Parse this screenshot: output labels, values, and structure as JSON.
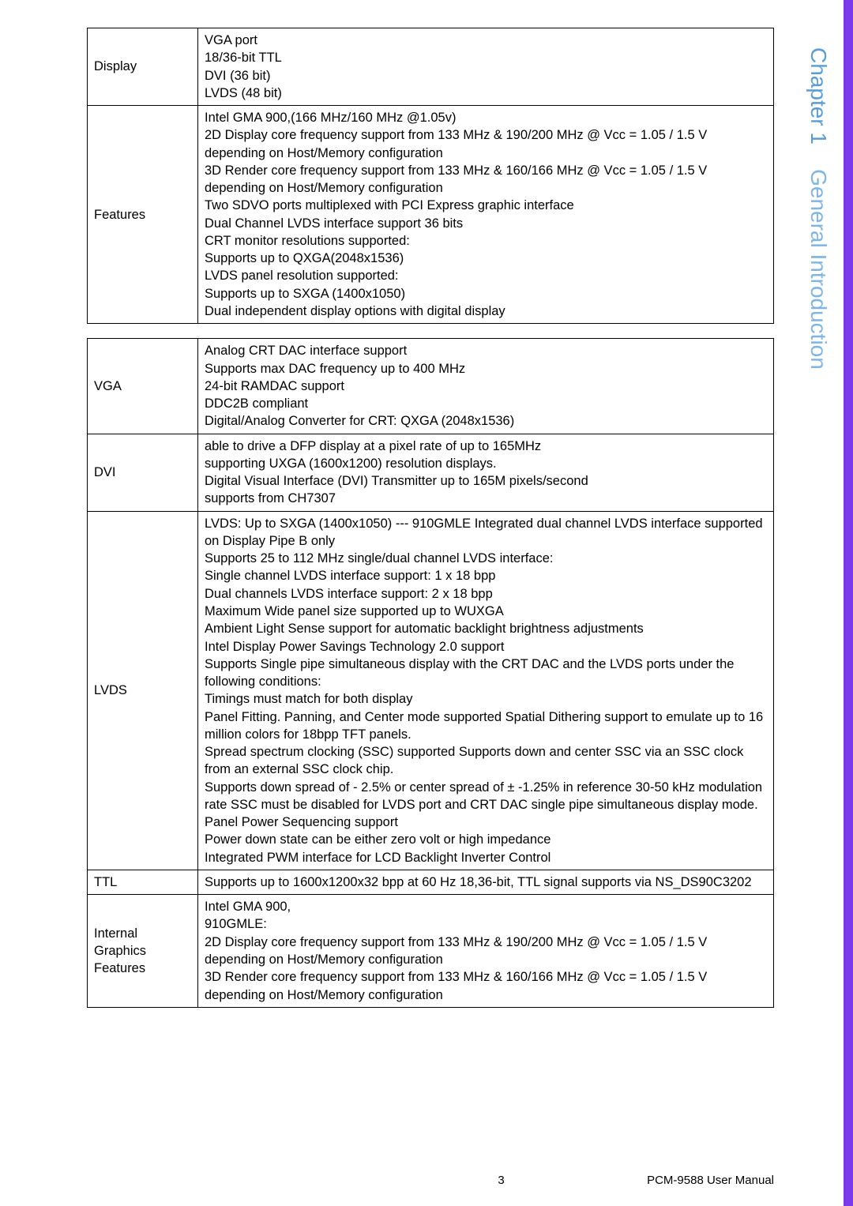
{
  "side": {
    "chapter": "Chapter 1",
    "title": "General Introduction"
  },
  "table1": {
    "rows": [
      {
        "label": "Display",
        "content": "VGA port\n18/36-bit TTL\nDVI (36 bit)\nLVDS (48 bit)"
      },
      {
        "label": "Features",
        "content": "Intel GMA 900,(166 MHz/160 MHz @1.05v)\n2D Display core frequency support from 133 MHz & 190/200 MHz @ Vcc = 1.05 / 1.5 V\ndepending on Host/Memory configuration\n3D Render core frequency support from 133 MHz & 160/166 MHz @ Vcc = 1.05 / 1.5 V\ndepending on Host/Memory configuration\nTwo SDVO ports multiplexed with PCI Express graphic interface\nDual Channel LVDS interface support 36 bits\nCRT monitor resolutions supported:\nSupports up to QXGA(2048x1536)\nLVDS panel resolution supported:\nSupports up to SXGA (1400x1050)\nDual independent display options with digital display"
      }
    ]
  },
  "table2": {
    "rows": [
      {
        "label": "VGA",
        "content": "Analog CRT DAC interface support\nSupports max DAC frequency up to 400 MHz\n24-bit RAMDAC support\nDDC2B compliant\nDigital/Analog Converter for CRT: QXGA (2048x1536)"
      },
      {
        "label": "DVI",
        "content": "able to drive a DFP display at a pixel rate of up to 165MHz\nsupporting UXGA (1600x1200) resolution displays.\nDigital Visual Interface (DVI) Transmitter up to 165M pixels/second\nsupports from CH7307"
      },
      {
        "label": "LVDS",
        "content": "LVDS: Up to SXGA (1400x1050) --- 910GMLE Integrated dual channel LVDS interface supported on Display Pipe B only\nSupports 25 to 112 MHz single/dual channel LVDS interface:\nSingle channel LVDS interface support: 1 x 18 bpp\nDual channels LVDS interface support: 2 x 18 bpp\nMaximum Wide panel size supported up to WUXGA\nAmbient Light Sense support for automatic backlight brightness adjustments\nIntel Display Power Savings Technology 2.0 support\nSupports Single pipe simultaneous display with the CRT DAC and the LVDS ports under the following conditions:\nTimings must match for both display\nPanel Fitting. Panning, and Center mode supported Spatial Dithering support to emulate up to 16 million colors for 18bpp TFT panels.\nSpread spectrum clocking (SSC) supported Supports down and center SSC via an SSC clock from an external SSC clock chip.\nSupports down spread of - 2.5% or center spread of ± -1.25% in reference 30-50 kHz modulation rate SSC must be disabled for LVDS port and CRT DAC single pipe simultaneous display mode.\nPanel Power Sequencing support\nPower down state can be either zero volt or high impedance\nIntegrated PWM interface for LCD Backlight Inverter Control"
      },
      {
        "label": "TTL",
        "content": "Supports up to 1600x1200x32 bpp at 60 Hz 18,36-bit, TTL signal supports via NS_DS90C3202"
      },
      {
        "label": "Internal Graphics Features",
        "content": "Intel GMA 900,\n910GMLE:\n2D Display core frequency support from 133 MHz & 190/200 MHz @ Vcc = 1.05 / 1.5 V depending on Host/Memory configuration\n3D Render core frequency support from 133 MHz & 160/166 MHz @ Vcc = 1.05 / 1.5 V depending on Host/Memory configuration"
      }
    ]
  },
  "footer": {
    "page": "3",
    "manual": "PCM-9588 User Manual"
  }
}
